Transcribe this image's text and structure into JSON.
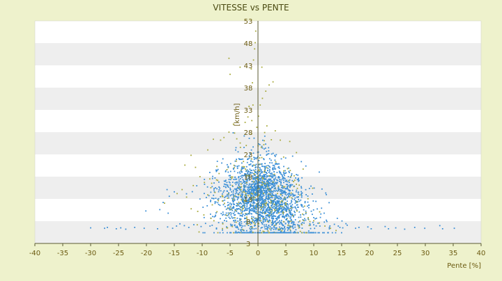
{
  "chart_data": {
    "type": "scatter",
    "title": "VITESSE vs PENTE",
    "xlabel": "Pente [%]",
    "ylabel": "[km/h]",
    "xlim": [
      -40,
      40
    ],
    "ylim": [
      3,
      53
    ],
    "xticks": [
      -40,
      -35,
      -30,
      -25,
      -20,
      -15,
      -10,
      -5,
      0,
      5,
      10,
      15,
      20,
      25,
      30,
      35,
      40
    ],
    "yticks": [
      3,
      8,
      13,
      18,
      23,
      28,
      33,
      38,
      43,
      48,
      53
    ],
    "grid": "horizontal bands",
    "legend": "none",
    "colors": {
      "background": "#eef2cc",
      "plot_band_light": "#ffffff",
      "plot_band_dark": "#eeeeee",
      "axis": "#5a5a32",
      "text": "#6b5a10",
      "series_blue": "#3b8fd6",
      "series_olive": "#a8aa3c"
    },
    "series": [
      {
        "color": "#a8aa3c",
        "points": [
          [
            -5.2,
            44.6
          ],
          [
            -5.0,
            41.0
          ],
          [
            -3.2,
            42.6
          ],
          [
            -1.2,
            42.2
          ],
          [
            -1.0,
            39.1
          ],
          [
            -0.8,
            44.2
          ],
          [
            -0.5,
            48.1
          ],
          [
            -0.4,
            50.7
          ],
          [
            -0.6,
            46.7
          ],
          [
            0.7,
            42.6
          ],
          [
            2.0,
            38.6
          ],
          [
            2.7,
            39.3
          ],
          [
            1.4,
            37.2
          ],
          [
            0.8,
            35.6
          ],
          [
            0.4,
            34.1
          ],
          [
            -0.9,
            34.1
          ],
          [
            -1.6,
            33.8
          ],
          [
            -1.8,
            31.4
          ],
          [
            -2.3,
            30.2
          ],
          [
            -4.4,
            29.8
          ],
          [
            -5.2,
            28.0
          ],
          [
            -6.1,
            26.8
          ],
          [
            -8.0,
            26.4
          ],
          [
            -9.0,
            24.0
          ],
          [
            -6.7,
            26.2
          ],
          [
            -4.2,
            27.8
          ],
          [
            -3.8,
            26.5
          ],
          [
            -2.1,
            25.0
          ],
          [
            -1.2,
            27.6
          ],
          [
            1.2,
            27.9
          ],
          [
            2.4,
            26.3
          ],
          [
            3.1,
            28.3
          ],
          [
            4.0,
            26.2
          ],
          [
            5.7,
            25.9
          ],
          [
            6.9,
            23.4
          ],
          [
            4.6,
            22.4
          ],
          [
            5.3,
            19.8
          ],
          [
            8.1,
            19.7
          ],
          [
            7.4,
            16.1
          ],
          [
            9.8,
            15.4
          ],
          [
            6.6,
            17.2
          ],
          [
            -12.0,
            22.8
          ],
          [
            -13.1,
            20.6
          ],
          [
            -11.2,
            20.1
          ],
          [
            -10.4,
            18.0
          ],
          [
            -9.6,
            16.7
          ],
          [
            -11.6,
            16.0
          ],
          [
            -13.6,
            15.1
          ],
          [
            -14.5,
            14.2
          ],
          [
            -12.8,
            13.4
          ],
          [
            -9.0,
            13.9
          ],
          [
            -7.1,
            12.6
          ],
          [
            -6.0,
            12.0
          ],
          [
            -5.0,
            11.2
          ],
          [
            -4.0,
            10.4
          ],
          [
            -3.0,
            9.8
          ],
          [
            -2.0,
            8.9
          ],
          [
            -1.0,
            8.0
          ],
          [
            0.0,
            7.5
          ],
          [
            1.0,
            8.6
          ],
          [
            2.0,
            9.3
          ],
          [
            3.0,
            10.6
          ],
          [
            4.1,
            11.4
          ],
          [
            5.0,
            12.1
          ],
          [
            6.0,
            11.0
          ],
          [
            7.0,
            10.3
          ],
          [
            8.0,
            9.6
          ],
          [
            9.0,
            8.8
          ],
          [
            10.0,
            8.1
          ],
          [
            11.0,
            7.6
          ],
          [
            12.0,
            6.9
          ],
          [
            13.0,
            6.4
          ],
          [
            14.0,
            5.9
          ],
          [
            3.6,
            6.2
          ],
          [
            1.8,
            5.8
          ],
          [
            -0.9,
            5.5
          ],
          [
            -2.7,
            6.1
          ],
          [
            -4.6,
            6.8
          ],
          [
            -6.3,
            7.4
          ],
          [
            -7.9,
            8.1
          ],
          [
            -9.7,
            9.4
          ],
          [
            -10.8,
            10.2
          ],
          [
            -1.8,
            18.3
          ],
          [
            -0.7,
            20.6
          ],
          [
            0.3,
            22.2
          ],
          [
            1.1,
            19.0
          ],
          [
            -2.6,
            21.4
          ],
          [
            -3.4,
            15.6
          ],
          [
            2.7,
            16.8
          ],
          [
            3.5,
            14.2
          ],
          [
            -4.7,
            17.6
          ],
          [
            0.6,
            24.6
          ],
          [
            -0.2,
            29.1
          ],
          [
            0.1,
            31.6
          ],
          [
            -1.1,
            30.6
          ],
          [
            1.6,
            29.4
          ]
        ]
      },
      {
        "color": "#3b8fd6",
        "points": [
          [
            -30.0,
            6.5
          ],
          [
            -27.5,
            6.4
          ],
          [
            -27.0,
            6.6
          ],
          [
            -25.4,
            6.3
          ],
          [
            -24.6,
            6.5
          ],
          [
            -23.7,
            6.2
          ],
          [
            -22.1,
            6.6
          ],
          [
            -20.4,
            6.4
          ],
          [
            -20.1,
            10.3
          ],
          [
            -18.0,
            6.3
          ],
          [
            -17.6,
            10.6
          ],
          [
            -16.2,
            6.7
          ],
          [
            -15.3,
            6.4
          ],
          [
            -14.6,
            6.9
          ],
          [
            -14.0,
            7.4
          ],
          [
            -13.2,
            7.0
          ],
          [
            -12.4,
            6.6
          ],
          [
            -11.5,
            7.2
          ],
          [
            -10.2,
            6.8
          ],
          [
            -9.4,
            7.5
          ],
          [
            -8.6,
            6.9
          ],
          [
            -16.3,
            15.1
          ],
          [
            -15.9,
            13.6
          ],
          [
            -15.0,
            14.6
          ],
          [
            -17.0,
            12.2
          ],
          [
            -16.1,
            9.8
          ],
          [
            17.5,
            6.4
          ],
          [
            18.1,
            6.6
          ],
          [
            19.7,
            6.7
          ],
          [
            20.3,
            6.3
          ],
          [
            22.8,
            6.8
          ],
          [
            23.4,
            6.3
          ],
          [
            24.7,
            6.5
          ],
          [
            26.3,
            6.2
          ],
          [
            28.1,
            6.6
          ],
          [
            29.9,
            6.4
          ],
          [
            32.6,
            7.0
          ],
          [
            33.1,
            6.3
          ],
          [
            35.2,
            6.4
          ],
          [
            16.0,
            7.1
          ],
          [
            15.2,
            6.5
          ],
          [
            14.4,
            6.9
          ],
          [
            13.7,
            7.3
          ],
          [
            12.8,
            6.6
          ],
          [
            11.9,
            7.8
          ],
          [
            11.1,
            6.9
          ]
        ]
      }
    ],
    "cluster": {
      "count": 2500,
      "x_center": 1.0,
      "x_spread": 3.6,
      "y_center": 14.0,
      "y_spread": 4.6,
      "y_slope_left": 0.55,
      "y_slope_right": 1.0,
      "y_min": 5.4,
      "y_max": 31.0
    }
  }
}
